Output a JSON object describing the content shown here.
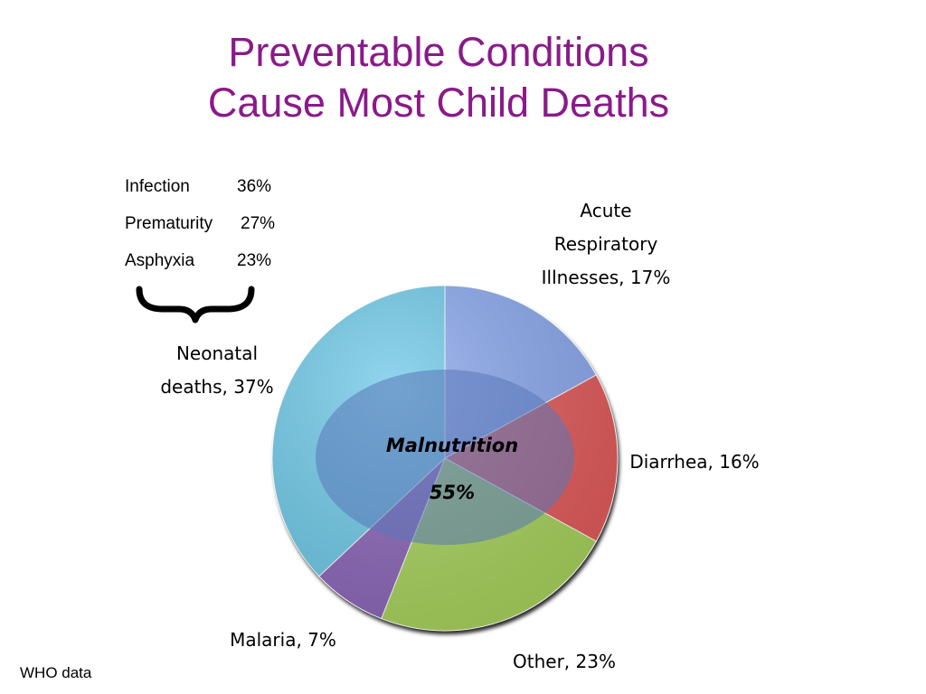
{
  "chart_data": {
    "type": "pie",
    "title_lines": [
      "Preventable Conditions",
      "Cause Most Child Deaths"
    ],
    "slices": [
      {
        "label_lines": [
          "Acute",
          "Respiratory",
          "Illnesses, 17%"
        ],
        "value": 17,
        "color": "#8aa8ee"
      },
      {
        "label_lines": [
          "Diarrhea, 16%"
        ],
        "value": 16,
        "color": "#e35a5a"
      },
      {
        "label_lines": [
          "Other, 23%"
        ],
        "value": 23,
        "color": "#a8d35c"
      },
      {
        "label_lines": [
          "Malaria, 7%"
        ],
        "value": 7,
        "color": "#8b65b8"
      },
      {
        "label_lines": [
          "Neonatal",
          "deaths, 37%"
        ],
        "value": 37,
        "color": "#6ec9e8"
      }
    ],
    "overlay": {
      "label": "Malnutrition",
      "value_label": "55%",
      "color": "#5a76b8"
    },
    "neonatal_breakdown": [
      {
        "name": "Infection",
        "pct": "36%"
      },
      {
        "name": "Prematurity",
        "pct": "27%"
      },
      {
        "name": "Asphyxia",
        "pct": "23%"
      }
    ]
  },
  "footer": {
    "source": "WHO data"
  }
}
